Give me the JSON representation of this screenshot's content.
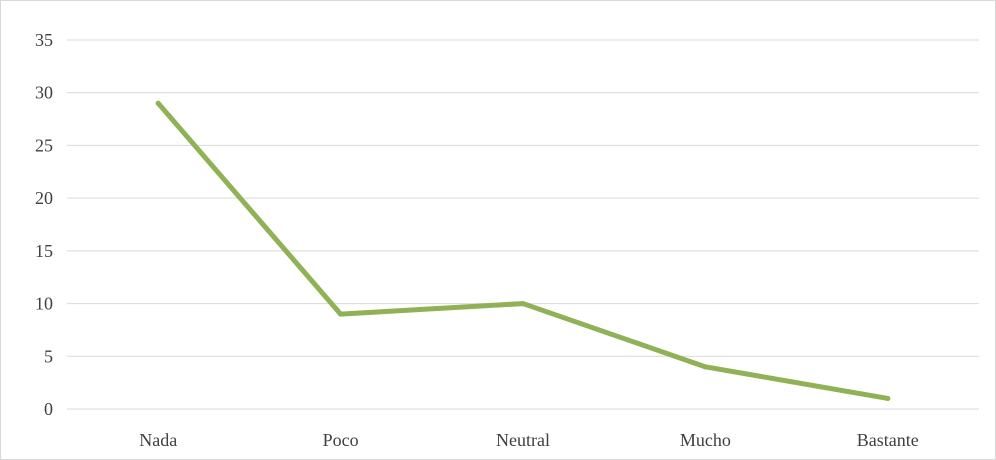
{
  "chart_data": {
    "type": "line",
    "categories": [
      "Nada",
      "Poco",
      "Neutral",
      "Mucho",
      "Bastante"
    ],
    "series": [
      {
        "values": [
          29,
          9,
          10,
          4,
          1
        ]
      }
    ],
    "y_ticks": [
      "0",
      "5",
      "10",
      "15",
      "20",
      "25",
      "30",
      "35"
    ],
    "ylim": [
      0,
      35
    ],
    "grid": true,
    "legend": "none",
    "colors": {
      "series": "#8eb255",
      "grid": "#d9d9d9",
      "text": "#404040"
    }
  }
}
